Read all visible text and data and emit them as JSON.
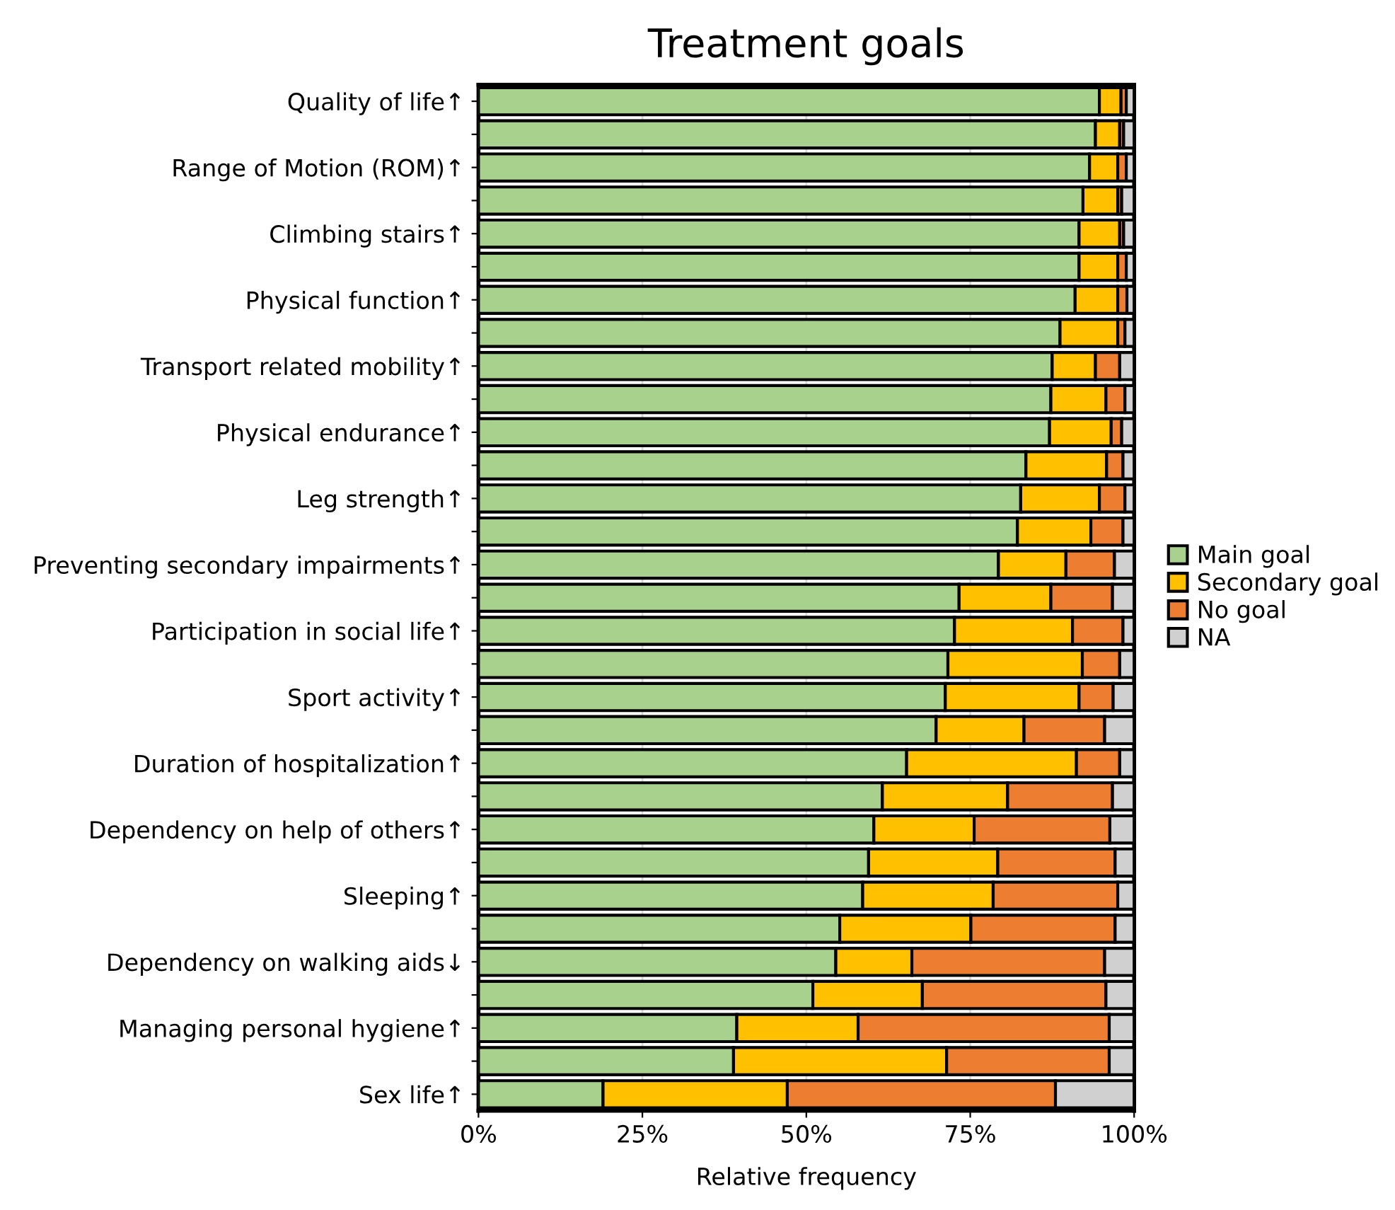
{
  "chart_data": {
    "type": "bar",
    "orientation": "horizontal",
    "stacked": true,
    "title": "Treatment goals",
    "xlabel": "Relative frequency",
    "categories": [
      "Quality of life↑",
      null,
      "Range of Motion (ROM)↑",
      null,
      "Climbing stairs↑",
      null,
      "Physical function↑",
      null,
      "Transport related mobility↑",
      null,
      "Physical endurance↑",
      null,
      "Leg strength↑",
      null,
      "Preventing secondary impairments↑",
      null,
      "Participation in social life↑",
      null,
      "Sport activity↑",
      null,
      "Duration of hospitalization↑",
      null,
      "Dependency on help of others↑",
      null,
      "Sleeping↑",
      null,
      "Dependency on walking aids↓",
      null,
      "Managing personal hygiene↑",
      null,
      "Sex life↑"
    ],
    "series": [
      {
        "name": "Main goal",
        "color": "#a9d18e",
        "values": [
          94.7,
          94.1,
          93.2,
          92.2,
          91.6,
          91.6,
          91.0,
          88.7,
          87.5,
          87.3,
          87.1,
          83.5,
          82.7,
          82.2,
          79.3,
          73.3,
          72.6,
          71.6,
          71.2,
          69.8,
          65.3,
          61.6,
          60.3,
          59.5,
          58.6,
          55.1,
          54.5,
          51.0,
          39.4,
          38.9,
          19.0
        ]
      },
      {
        "name": "Secondary goal",
        "color": "#ffc000",
        "values": [
          3.3,
          3.7,
          4.3,
          5.3,
          6.2,
          5.9,
          6.5,
          8.8,
          6.6,
          8.4,
          9.4,
          12.3,
          12.0,
          11.2,
          10.3,
          14.0,
          18.0,
          20.5,
          20.4,
          13.4,
          25.9,
          19.1,
          15.3,
          19.7,
          19.9,
          20.0,
          11.6,
          16.7,
          18.5,
          32.5,
          28.1
        ]
      },
      {
        "name": "No goal",
        "color": "#ed7d31",
        "values": [
          0.8,
          0.6,
          1.3,
          0.6,
          0.6,
          1.3,
          1.4,
          1.1,
          3.7,
          2.9,
          1.6,
          2.5,
          3.9,
          4.9,
          7.4,
          9.4,
          7.7,
          5.7,
          5.2,
          12.3,
          6.6,
          16.0,
          20.7,
          17.9,
          19.0,
          22.0,
          29.4,
          28.0,
          38.3,
          24.8,
          40.9
        ]
      },
      {
        "name": "NA",
        "color": "#d0d0d0",
        "values": [
          1.2,
          1.6,
          1.2,
          1.9,
          1.6,
          1.2,
          1.1,
          1.4,
          2.2,
          1.4,
          1.9,
          1.7,
          1.4,
          1.7,
          3.0,
          3.3,
          1.7,
          2.2,
          3.2,
          4.5,
          2.2,
          3.3,
          3.7,
          2.9,
          2.5,
          2.9,
          4.5,
          4.3,
          3.8,
          3.8,
          12.0
        ]
      }
    ],
    "xlim": [
      0,
      100
    ],
    "xticks": [
      {
        "value": 0,
        "label": "0%"
      },
      {
        "value": 25,
        "label": "25%"
      },
      {
        "value": 50,
        "label": "50%"
      },
      {
        "value": 75,
        "label": "75%"
      },
      {
        "value": 100,
        "label": "100%"
      }
    ],
    "grid": "x",
    "legend": "right"
  }
}
